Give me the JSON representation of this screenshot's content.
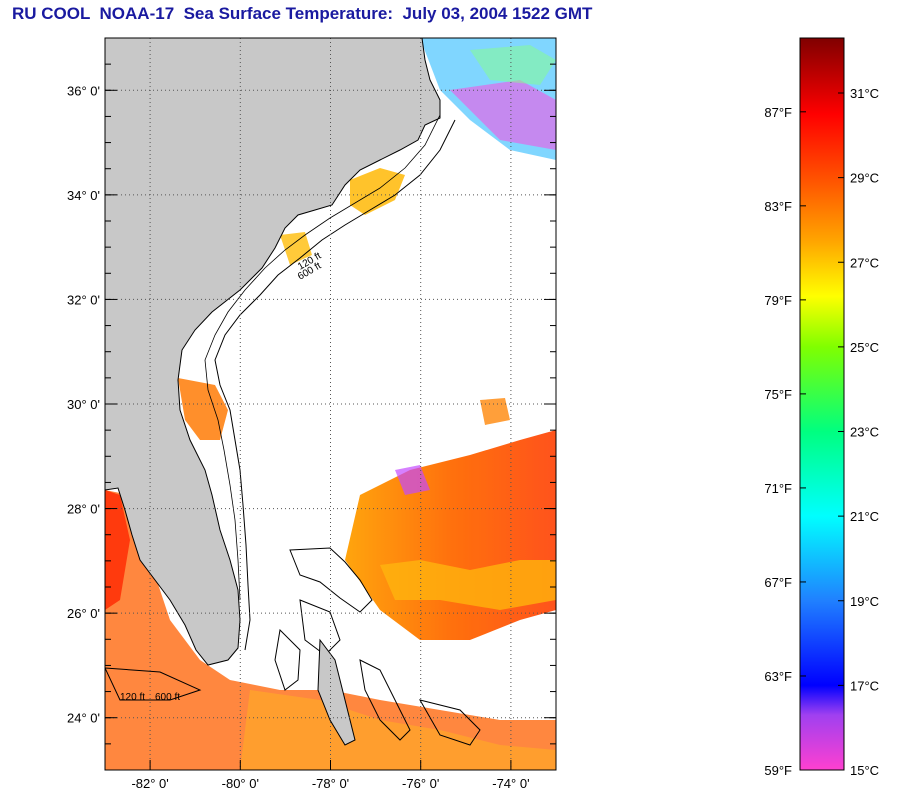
{
  "title": "RU COOL  NOAA-17  Sea Surface Temperature:  July 03, 2004 1522 GMT",
  "map": {
    "lat_range": [
      23.0,
      37.0
    ],
    "lon_range": [
      -83.0,
      -73.0
    ],
    "lat_ticks": [
      {
        "value": 36,
        "label": "36° 0'"
      },
      {
        "value": 34,
        "label": "34° 0'"
      },
      {
        "value": 32,
        "label": "32° 0'"
      },
      {
        "value": 30,
        "label": "30° 0'"
      },
      {
        "value": 28,
        "label": "28° 0'"
      },
      {
        "value": 26,
        "label": "26° 0'"
      },
      {
        "value": 24,
        "label": "24° 0'"
      }
    ],
    "lon_ticks": [
      {
        "value": -82,
        "label": "-82° 0'"
      },
      {
        "value": -80,
        "label": "-80° 0'"
      },
      {
        "value": -78,
        "label": "-78° 0'"
      },
      {
        "value": -76,
        "label": "-76° 0'"
      },
      {
        "value": -74,
        "label": "-74° 0'"
      }
    ],
    "grid": true,
    "colors": {
      "land": "#c8c8c8",
      "ocean": "#ffffff",
      "coastline": "#000000",
      "grid": "#555555"
    },
    "isobath_labels": [
      "120 ft",
      "600 ft",
      "120 ft",
      "600 ft"
    ]
  },
  "colorbar": {
    "fahrenheit_labels": [
      "87°F",
      "83°F",
      "79°F",
      "75°F",
      "71°F",
      "67°F",
      "63°F",
      "59°F"
    ],
    "celsius_labels": [
      "31°C",
      "29°C",
      "27°C",
      "25°C",
      "23°C",
      "21°C",
      "19°C",
      "17°C",
      "15°C"
    ],
    "range_c": [
      15,
      32.3
    ],
    "stops": [
      {
        "c": 15.0,
        "color": "#ff40d0"
      },
      {
        "c": 16.3,
        "color": "#a040f0"
      },
      {
        "c": 17.0,
        "color": "#0000ff"
      },
      {
        "c": 19.0,
        "color": "#2080ff"
      },
      {
        "c": 21.0,
        "color": "#00ffff"
      },
      {
        "c": 23.0,
        "color": "#00ff80"
      },
      {
        "c": 25.0,
        "color": "#80ff00"
      },
      {
        "c": 26.2,
        "color": "#ffff00"
      },
      {
        "c": 27.5,
        "color": "#ffa500"
      },
      {
        "c": 29.0,
        "color": "#ff5000"
      },
      {
        "c": 30.5,
        "color": "#ff0000"
      },
      {
        "c": 32.3,
        "color": "#800000"
      }
    ]
  }
}
